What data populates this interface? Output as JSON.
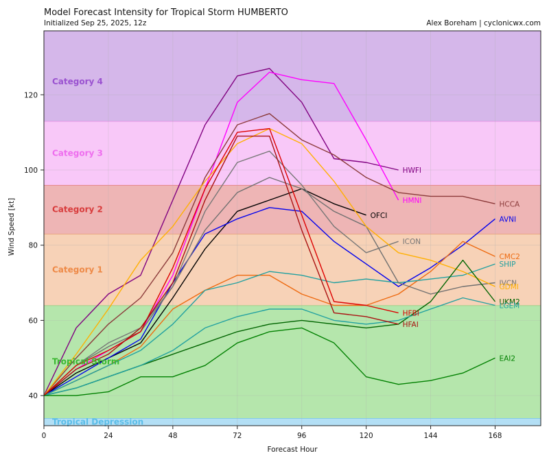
{
  "header": {
    "title": "Model Forecast Intensity for Tropical Storm HUMBERTO",
    "subtitle": "Initialized Sep 25, 2025, 12z",
    "credit": "Alex Boreham | cyclonicwx.com"
  },
  "chart_data": {
    "type": "line",
    "xlabel": "Forecast Hour",
    "ylabel": "Wind Speed [kt]",
    "xlim": [
      0,
      185
    ],
    "ylim": [
      32,
      137
    ],
    "x_ticks": [
      0,
      24,
      48,
      72,
      96,
      120,
      144,
      168
    ],
    "y_ticks": [
      40,
      60,
      80,
      100,
      120
    ],
    "grid": true,
    "bands": [
      {
        "name": "Tropical Depression",
        "min": 32,
        "max": 34,
        "fill": "#b3dff5",
        "edge": "#6fc3ea",
        "text_color": "#5bbde8",
        "label_y": 33
      },
      {
        "name": "Tropical Storm",
        "min": 34,
        "max": 64,
        "fill": "#b5e6ac",
        "edge": "#8ccf7e",
        "text_color": "#3cb832",
        "label_y": 49
      },
      {
        "name": "Category 1",
        "min": 64,
        "max": 83,
        "fill": "#f7d2b7",
        "edge": "#e8a272",
        "text_color": "#ee8a48",
        "label_y": 73.5
      },
      {
        "name": "Category 2",
        "min": 83,
        "max": 96,
        "fill": "#eeb5b5",
        "edge": "#e07070",
        "text_color": "#d83c3c",
        "label_y": 89.5
      },
      {
        "name": "Category 3",
        "min": 96,
        "max": 113,
        "fill": "#f8c8f8",
        "edge": "#e088e0",
        "text_color": "#ee6eee",
        "label_y": 104.5
      },
      {
        "name": "Category 4",
        "min": 113,
        "max": 137,
        "fill": "#d5b7ea",
        "edge": "#b48ae0",
        "text_color": "#9a52d0",
        "label_y": 123.5
      }
    ],
    "series": [
      {
        "name": "HWFI",
        "color": "#800080",
        "x": [
          0,
          12,
          24,
          36,
          48,
          60,
          72,
          84,
          96,
          108,
          120,
          132
        ],
        "values": [
          40,
          58,
          67,
          72,
          92,
          112,
          125,
          127,
          118,
          103,
          102,
          100
        ],
        "label_y": 100
      },
      {
        "name": "HMNI",
        "color": "#ff00ff",
        "x": [
          0,
          12,
          24,
          36,
          48,
          60,
          72,
          84,
          96,
          108,
          120,
          132
        ],
        "values": [
          40,
          47,
          52,
          57,
          72,
          95,
          118,
          126,
          124,
          123,
          108,
          92
        ],
        "label_y": 92
      },
      {
        "name": "HCCA",
        "color": "#8b3a3a",
        "x": [
          0,
          12,
          24,
          36,
          48,
          60,
          72,
          84,
          96,
          108,
          120,
          132,
          144,
          156,
          168
        ],
        "values": [
          40,
          50,
          59,
          66,
          78,
          98,
          112,
          115,
          108,
          104,
          98,
          94,
          93,
          93,
          91
        ],
        "label_y": 91
      },
      {
        "name": "OFCI",
        "color": "#000000",
        "x": [
          0,
          12,
          24,
          36,
          48,
          60,
          72,
          84,
          96,
          108,
          120
        ],
        "values": [
          40,
          46,
          50,
          54,
          66,
          79,
          89,
          92,
          95,
          91,
          88
        ],
        "label_y": 88
      },
      {
        "name": "AVNI",
        "color": "#0000ee",
        "x": [
          0,
          12,
          24,
          36,
          48,
          60,
          72,
          84,
          96,
          108,
          120,
          132,
          144,
          156,
          168
        ],
        "values": [
          40,
          45,
          50,
          55,
          70,
          83,
          87,
          90,
          89,
          81,
          75,
          69,
          74,
          80,
          87
        ],
        "label_y": 87
      },
      {
        "name": "ICON",
        "color": "#777777",
        "x": [
          0,
          12,
          24,
          36,
          48,
          60,
          72,
          84,
          96,
          108,
          120,
          132
        ],
        "values": [
          40,
          48,
          54,
          58,
          69,
          89,
          102,
          105,
          96,
          85,
          78,
          81
        ],
        "label_y": 81
      },
      {
        "name": "CMC2",
        "color": "#ee6a10",
        "x": [
          0,
          12,
          24,
          36,
          48,
          60,
          72,
          84,
          96,
          108,
          120,
          132,
          144,
          156,
          168
        ],
        "values": [
          40,
          44,
          48,
          53,
          63,
          68,
          72,
          72,
          67,
          64,
          64,
          67,
          73,
          81,
          77
        ],
        "label_y": 77
      },
      {
        "name": "SHIP",
        "color": "#20a0a0",
        "x": [
          0,
          12,
          24,
          36,
          48,
          60,
          72,
          84,
          96,
          108,
          120,
          132,
          144,
          156,
          168
        ],
        "values": [
          40,
          44,
          48,
          52,
          59,
          68,
          70,
          73,
          72,
          70,
          71,
          70,
          71,
          72,
          75
        ],
        "label_y": 75
      },
      {
        "name": "IVCN",
        "color": "#707070",
        "x": [
          0,
          12,
          24,
          36,
          48,
          60,
          72,
          84,
          96,
          108,
          120,
          132,
          144,
          156,
          168
        ],
        "values": [
          40,
          48,
          53,
          57,
          69,
          84,
          94,
          98,
          95,
          89,
          85,
          70,
          67,
          69,
          70
        ],
        "label_y": 70
      },
      {
        "name": "GDMI",
        "color": "#ffb000",
        "x": [
          0,
          12,
          24,
          36,
          48,
          60,
          72,
          84,
          96,
          108,
          120,
          132,
          144,
          156,
          168
        ],
        "values": [
          40,
          51,
          63,
          76,
          85,
          97,
          107,
          111,
          107,
          97,
          85,
          78,
          76,
          73,
          69
        ],
        "label_y": 69
      },
      {
        "name": "UKM2",
        "color": "#006400",
        "x": [
          0,
          12,
          24,
          36,
          48,
          60,
          72,
          84,
          96,
          108,
          120,
          132,
          144,
          156,
          168
        ],
        "values": [
          40,
          42,
          45,
          48,
          51,
          54,
          57,
          59,
          60,
          59,
          58,
          59,
          65,
          76,
          65
        ],
        "label_y": 65
      },
      {
        "name": "LGEM",
        "color": "#20a0a0",
        "x": [
          0,
          12,
          24,
          36,
          48,
          60,
          72,
          84,
          96,
          108,
          120,
          132,
          144,
          156,
          168
        ],
        "values": [
          40,
          42,
          45,
          48,
          52,
          58,
          61,
          63,
          63,
          60,
          59,
          60,
          63,
          66,
          64
        ],
        "label_y": 64
      },
      {
        "name": "HFBI",
        "color": "#dd0000",
        "x": [
          0,
          12,
          24,
          36,
          48,
          60,
          72,
          84,
          96,
          108,
          120,
          132
        ],
        "values": [
          40,
          48,
          52,
          57,
          74,
          95,
          110,
          111,
          88,
          65,
          64,
          62
        ],
        "label_y": 62
      },
      {
        "name": "HFAI",
        "color": "#aa1010",
        "x": [
          0,
          12,
          24,
          36,
          48,
          60,
          72,
          84,
          96,
          108,
          120,
          132
        ],
        "values": [
          40,
          47,
          51,
          58,
          70,
          92,
          109,
          109,
          84,
          62,
          61,
          59
        ],
        "label_y": 59
      },
      {
        "name": "EAI2",
        "color": "#008000",
        "x": [
          0,
          12,
          24,
          36,
          48,
          60,
          72,
          84,
          96,
          108,
          120,
          132,
          144,
          156,
          168
        ],
        "values": [
          40,
          40,
          41,
          45,
          45,
          48,
          54,
          57,
          58,
          54,
          45,
          43,
          44,
          46,
          50
        ],
        "label_y": 50
      }
    ]
  }
}
